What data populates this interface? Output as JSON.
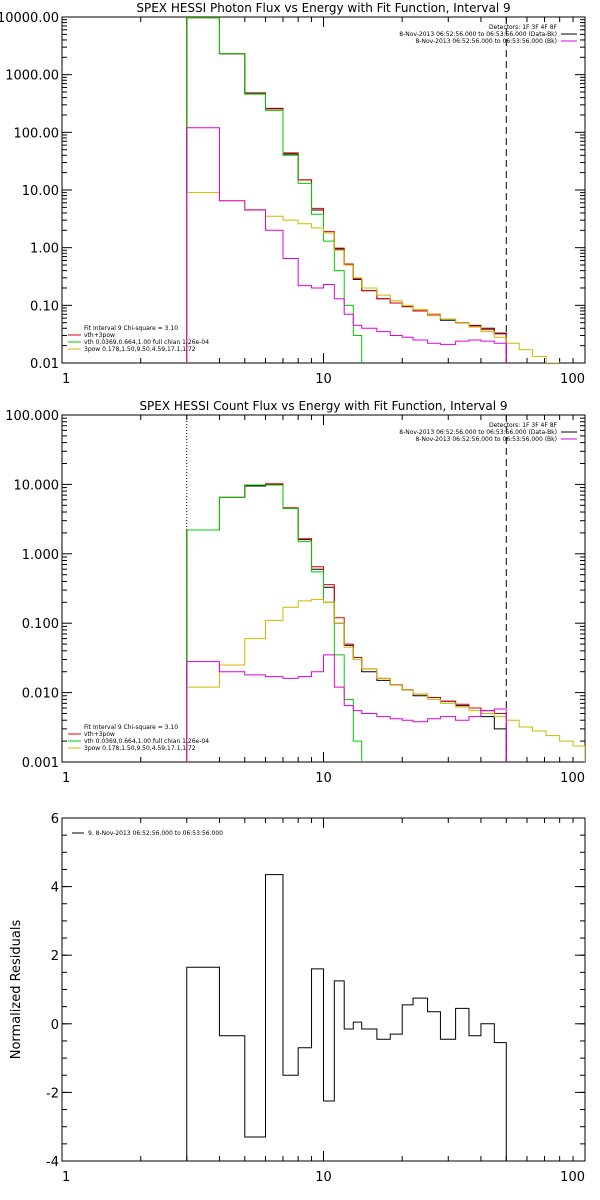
{
  "chart_data": [
    {
      "type": "line",
      "title": "SPEX HESSI Photon Flux vs Energy with Fit Function, Interval 9",
      "xscale": "log",
      "yscale": "log",
      "xlim": [
        1,
        100
      ],
      "ylim": [
        0.01,
        10000
      ],
      "x_ticks": [
        1,
        10,
        100
      ],
      "x_tick_labels": [
        "1",
        "10",
        "100"
      ],
      "y_ticks": [
        0.01,
        0.1,
        1,
        10,
        100,
        1000,
        10000
      ],
      "y_tick_labels": [
        "0.01",
        "0.10",
        "1.00",
        "10.00",
        "100.00",
        "1000.00",
        "10000.00"
      ],
      "vertical_lines": [
        {
          "x": 3,
          "style": "dotted",
          "color": "#000000"
        },
        {
          "x": 50,
          "style": "dashed",
          "color": "#000000"
        }
      ],
      "legend_top_right": [
        {
          "text": "Detectors: 1F 3F 4F 8F",
          "color": "#000000"
        },
        {
          "text": "8-Nov-2013 06:52:56.000 to 06:53:56.000 (Data-Bk)",
          "color": "#000000"
        },
        {
          "text": "8-Nov-2013 06:52:56.000 to 06:53:56.000 (Bk)",
          "color": "#e000e0"
        }
      ],
      "legend_bottom_left": [
        {
          "text": "Fit Interval 9   Chi-square = 3.10",
          "color": "#000000"
        },
        {
          "text": "vth+3pow",
          "color": "#e00000"
        },
        {
          "text": "vth 0.0369,0.664,1.00  full chian 1.26e-04",
          "color": "#00cc00"
        },
        {
          "text": "3pow 0.178,1.50,9.50,4.59,17.1,1.72",
          "color": "#d4b800"
        }
      ],
      "series": [
        {
          "color": "#000000",
          "edges": [
            3,
            4,
            5,
            6,
            7,
            8,
            9,
            10,
            11,
            12,
            13,
            14,
            16,
            18,
            20,
            22,
            25,
            28,
            32,
            36,
            40,
            45,
            50
          ],
          "values": [
            9800,
            2300,
            480,
            260,
            42,
            15,
            4.5,
            1.8,
            0.95,
            0.5,
            0.28,
            0.18,
            0.13,
            0.11,
            0.095,
            0.08,
            0.07,
            0.055,
            0.05,
            0.045,
            0.04,
            0.033
          ]
        },
        {
          "color": "#e00000",
          "edges": [
            3,
            4,
            5,
            6,
            7,
            8,
            9,
            10,
            11,
            12,
            13,
            14,
            16,
            18,
            20,
            22,
            25,
            28,
            32,
            36,
            40,
            45,
            50
          ],
          "values": [
            9700,
            2300,
            470,
            255,
            44,
            15,
            4.8,
            1.9,
            0.98,
            0.52,
            0.29,
            0.18,
            0.13,
            0.11,
            0.095,
            0.08,
            0.068,
            0.058,
            0.05,
            0.044,
            0.038,
            0.032
          ]
        },
        {
          "color": "#00cc00",
          "edges": [
            3,
            4,
            5,
            6,
            7,
            8,
            9,
            10,
            11,
            12,
            13,
            14
          ],
          "values": [
            9700,
            2300,
            460,
            240,
            40,
            13,
            3.8,
            1.3,
            0.4,
            0.1,
            0.03
          ]
        },
        {
          "color": "#d4b800",
          "edges": [
            3,
            4,
            5,
            6,
            7,
            8,
            9,
            10,
            11,
            12,
            13,
            14,
            16,
            18,
            20,
            22,
            25,
            28,
            32,
            36,
            40,
            45,
            50,
            56,
            63,
            71,
            80
          ],
          "values": [
            9,
            6.5,
            4.6,
            3.5,
            3.0,
            2.6,
            2.2,
            1.8,
            0.9,
            0.5,
            0.3,
            0.2,
            0.15,
            0.12,
            0.1,
            0.085,
            0.07,
            0.058,
            0.05,
            0.042,
            0.035,
            0.028,
            0.022,
            0.017,
            0.013,
            0.01
          ]
        },
        {
          "color": "#e000e0",
          "edges": [
            3,
            4,
            5,
            6,
            7,
            8,
            9,
            10,
            11,
            12,
            13,
            14,
            16,
            18,
            20,
            22,
            25,
            28,
            32,
            36,
            40,
            45,
            50
          ],
          "values": [
            120,
            6.5,
            4.5,
            2.0,
            0.65,
            0.22,
            0.2,
            0.23,
            0.13,
            0.07,
            0.045,
            0.04,
            0.035,
            0.03,
            0.028,
            0.025,
            0.022,
            0.021,
            0.024,
            0.025,
            0.024,
            0.022
          ]
        }
      ]
    },
    {
      "type": "line",
      "title": "SPEX HESSI Count Flux vs Energy with Fit Function, Interval 9",
      "xscale": "log",
      "yscale": "log",
      "xlim": [
        1,
        100
      ],
      "ylim": [
        0.001,
        100
      ],
      "x_ticks": [
        1,
        10,
        100
      ],
      "x_tick_labels": [
        "1",
        "10",
        "100"
      ],
      "y_ticks": [
        0.001,
        0.01,
        0.1,
        1,
        10,
        100
      ],
      "y_tick_labels": [
        "0.001",
        "0.010",
        "0.100",
        "1.000",
        "10.000",
        "100.000"
      ],
      "vertical_lines": [
        {
          "x": 3,
          "style": "dotted",
          "color": "#000000"
        },
        {
          "x": 50,
          "style": "dashed",
          "color": "#000000"
        }
      ],
      "legend_top_right": [
        {
          "text": "Detectors: 1F 3F 4F 8F",
          "color": "#000000"
        },
        {
          "text": "8-Nov-2013 06:52:56.000 to 06:53:56.000 (Data-Bk)",
          "color": "#000000"
        },
        {
          "text": "8-Nov-2013 06:52:56.000 to 06:53:56.000 (Bk)",
          "color": "#e000e0"
        }
      ],
      "legend_bottom_left": [
        {
          "text": "Fit Interval 9   Chi-square = 3.10",
          "color": "#000000"
        },
        {
          "text": "vth+3pow",
          "color": "#e00000"
        },
        {
          "text": "vth 0.0369,0.664,1.00  full chian 1.26e-04",
          "color": "#00cc00"
        },
        {
          "text": "3pow 0.178,1.50,9.50,4.59,17.1,1.72",
          "color": "#d4b800"
        }
      ],
      "series": [
        {
          "color": "#000000",
          "edges": [
            3,
            4,
            5,
            6,
            7,
            8,
            9,
            10,
            11,
            12,
            13,
            14,
            16,
            18,
            20,
            22,
            25,
            28,
            32,
            36,
            40,
            45,
            50
          ],
          "values": [
            2.2,
            6.5,
            9.5,
            10.0,
            4.5,
            1.6,
            0.6,
            0.33,
            0.1,
            0.048,
            0.03,
            0.02,
            0.015,
            0.013,
            0.011,
            0.009,
            0.0085,
            0.0075,
            0.0065,
            0.006,
            0.0045,
            0.003
          ]
        },
        {
          "color": "#e00000",
          "edges": [
            3,
            4,
            5,
            6,
            7,
            8,
            9,
            10,
            11,
            12,
            13,
            14,
            16,
            18,
            20,
            22,
            25,
            28,
            32,
            36,
            40,
            45,
            50
          ],
          "values": [
            2.2,
            6.5,
            9.8,
            10.2,
            4.6,
            1.65,
            0.65,
            0.36,
            0.12,
            0.05,
            0.032,
            0.022,
            0.016,
            0.013,
            0.011,
            0.0095,
            0.0085,
            0.0075,
            0.0068,
            0.006,
            0.0055,
            0.005
          ]
        },
        {
          "color": "#00cc00",
          "edges": [
            3,
            4,
            5,
            6,
            7,
            8,
            9,
            10,
            11,
            12,
            13,
            14
          ],
          "values": [
            2.2,
            6.5,
            9.8,
            9.8,
            4.5,
            1.5,
            0.55,
            0.2,
            0.035,
            0.008,
            0.002
          ]
        },
        {
          "color": "#d4b800",
          "edges": [
            3,
            4,
            5,
            6,
            7,
            8,
            9,
            10,
            11,
            12,
            13,
            14,
            16,
            18,
            20,
            22,
            25,
            28,
            32,
            36,
            40,
            45,
            50,
            56,
            63,
            71,
            80,
            90,
            100
          ],
          "values": [
            0.012,
            0.025,
            0.06,
            0.11,
            0.17,
            0.21,
            0.22,
            0.2,
            0.1,
            0.045,
            0.03,
            0.022,
            0.016,
            0.013,
            0.011,
            0.0095,
            0.008,
            0.007,
            0.0062,
            0.0055,
            0.005,
            0.0045,
            0.004,
            0.0032,
            0.0028,
            0.0024,
            0.002,
            0.0017
          ]
        },
        {
          "color": "#e000e0",
          "edges": [
            3,
            4,
            5,
            6,
            7,
            8,
            9,
            10,
            11,
            12,
            13,
            14,
            16,
            18,
            20,
            22,
            25,
            28,
            32,
            36,
            40,
            45,
            50
          ],
          "values": [
            0.028,
            0.02,
            0.018,
            0.017,
            0.016,
            0.017,
            0.02,
            0.035,
            0.012,
            0.0065,
            0.0055,
            0.005,
            0.0045,
            0.0042,
            0.004,
            0.0038,
            0.0042,
            0.0045,
            0.004,
            0.0045,
            0.0055,
            0.0058
          ]
        }
      ]
    },
    {
      "type": "line",
      "title": "",
      "xscale": "log",
      "yscale": "linear",
      "xlim": [
        1,
        100
      ],
      "ylim": [
        -4,
        6
      ],
      "ylabel": "Normalized Residuals",
      "x_ticks": [
        1,
        10,
        100
      ],
      "x_tick_labels": [
        "1",
        "10",
        "100"
      ],
      "y_ticks": [
        -4,
        -2,
        0,
        2,
        4,
        6
      ],
      "y_tick_labels": [
        "-4",
        "-2",
        "0",
        "2",
        "4",
        "6"
      ],
      "legend_top_left": [
        {
          "text": "9. 8-Nov-2013 06:52:56.000 to 06:53:56.000",
          "color": "#000000"
        }
      ],
      "series": [
        {
          "color": "#000000",
          "edges": [
            3,
            4,
            5,
            6,
            7,
            8,
            9,
            10,
            11,
            12,
            13,
            14,
            16,
            18,
            20,
            22,
            25,
            28,
            32,
            36,
            40,
            45,
            50
          ],
          "values": [
            1.65,
            -0.35,
            -3.3,
            4.35,
            -1.5,
            -0.7,
            1.6,
            -2.25,
            1.25,
            -0.15,
            0.05,
            -0.15,
            -0.45,
            -0.3,
            0.55,
            0.75,
            0.35,
            -0.45,
            0.45,
            -0.35,
            0.0,
            -0.55
          ],
          "drop_to": -4
        }
      ]
    }
  ]
}
